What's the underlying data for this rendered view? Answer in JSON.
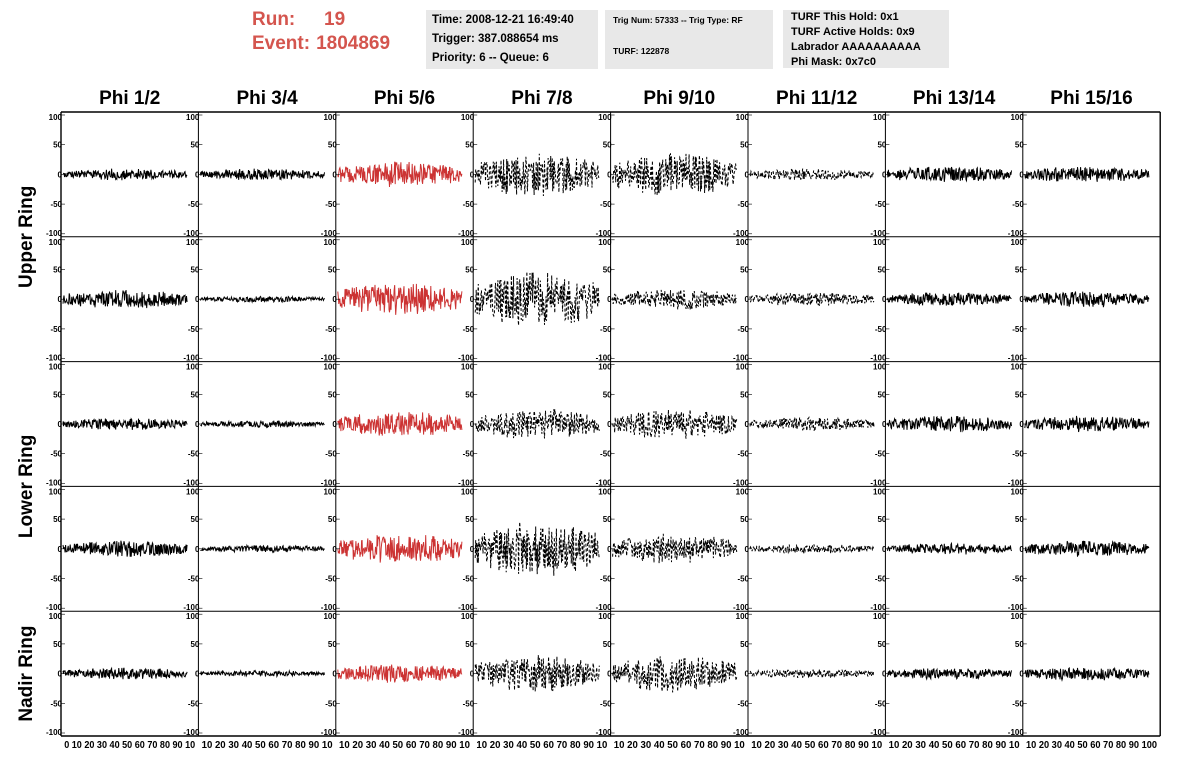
{
  "header": {
    "run_label": "Run:",
    "run_value": "19",
    "event_label": "Event:",
    "event_value": "1804869",
    "time_line": "Time: 2008-12-21 16:49:40",
    "trigger_line": "Trigger: 387.088654 ms",
    "priority_line": "Priority: 6 -- Queue: 6",
    "trig_line": "Trig Num: 57333 -- Trig Type: RF",
    "turf_line": "TURF: 122878",
    "turf_hold_line": "TURF This Hold: 0x1",
    "turf_active_line": "TURF Active Holds: 0x9",
    "labrador_line": "Labrador AAAAAAAAAA",
    "phi_mask_line": "Phi Mask: 0x7c0"
  },
  "colors": {
    "header_red": "#d4554e",
    "masked_trace": "#cc3333",
    "normal_trace": "#000000",
    "info_background": "#e8e8e8"
  },
  "chart_data": {
    "type": "line",
    "columns": [
      "Phi 1/2",
      "Phi 3/4",
      "Phi 5/6",
      "Phi 7/8",
      "Phi 9/10",
      "Phi 11/12",
      "Phi 13/14",
      "Phi 15/16"
    ],
    "rows": [
      "Upper Ring",
      "Lower Ring",
      "Nadir Ring"
    ],
    "xlim": [
      0,
      100
    ],
    "ylim": [
      -100,
      100
    ],
    "y_ticks": [
      "100",
      "50",
      "0",
      "-50",
      "-100"
    ],
    "x_tick_label": "0 10 20 30 40 50 60 70 80 90 100",
    "x_tick_label_short": "10 20 30 40 50 60 70 80 90 10",
    "x_tick_label_first": "0 10 20 30 40 50 60 70 80 90 10",
    "x_tick_label_last": "10 20 30 40 50 60 70 80 90 100",
    "masked_column": "Phi 5/6",
    "amplitudes": [
      [
        10,
        10,
        22,
        38,
        38,
        10,
        14,
        14
      ],
      [
        16,
        5,
        28,
        48,
        18,
        12,
        12,
        14
      ],
      [
        10,
        6,
        22,
        26,
        26,
        12,
        14,
        14
      ],
      [
        14,
        6,
        26,
        48,
        26,
        8,
        10,
        14
      ],
      [
        10,
        5,
        16,
        32,
        32,
        8,
        10,
        12
      ]
    ],
    "dashed_columns": [
      "Phi 7/8",
      "Phi 9/10",
      "Phi 11/12"
    ]
  }
}
